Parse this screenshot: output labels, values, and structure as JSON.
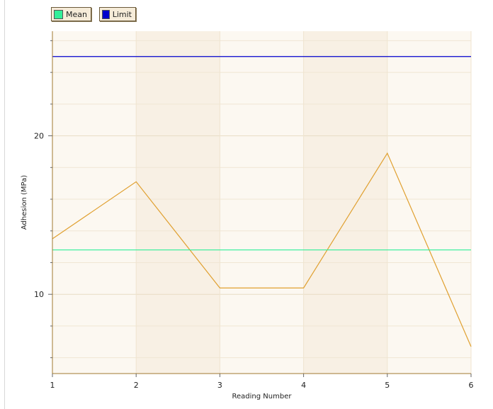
{
  "legend": {
    "mean_label": "Mean",
    "limit_label": "Limit",
    "mean_color": "#33ee99",
    "limit_color": "#0000cc"
  },
  "chart_data": {
    "type": "line",
    "xlabel": "Reading Number",
    "ylabel": "Adhesion (MPa)",
    "x": [
      1,
      2,
      3,
      4,
      5,
      6
    ],
    "xlim": [
      1,
      6
    ],
    "ylim": [
      5,
      26.6
    ],
    "x_ticks": [
      "1",
      "2",
      "3",
      "4",
      "5",
      "6"
    ],
    "y_ticks": [
      10,
      20
    ],
    "y_tick_labels": [
      "10",
      "20"
    ],
    "series": [
      {
        "values": [
          13.5,
          17.1,
          10.4,
          10.4,
          18.9,
          6.7
        ],
        "color": "#e0a030"
      },
      {
        "name": "Mean",
        "values": [
          12.8,
          12.8,
          12.8,
          12.8,
          12.8,
          12.8
        ],
        "color": "#33ee99"
      },
      {
        "name": "Limit",
        "values": [
          25.0,
          25.0,
          25.0,
          25.0,
          25.0,
          25.0
        ],
        "color": "#0000cc"
      }
    ],
    "legend_position": "top-left",
    "grid": true,
    "background_color": "#fcf8f1",
    "band_color": "#f8f0e4"
  }
}
